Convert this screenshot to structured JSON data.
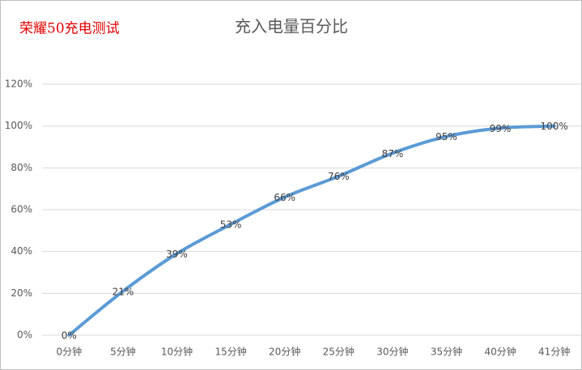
{
  "chart_data": {
    "type": "line",
    "title": "充入电量百分比",
    "annotation": "荣耀50充电测试",
    "categories": [
      "0分钟",
      "5分钟",
      "10分钟",
      "15分钟",
      "20分钟",
      "25分钟",
      "30分钟",
      "35分钟",
      "40分钟",
      "41分钟"
    ],
    "series": [
      {
        "name": "充入电量百分比",
        "color": "#5b9bd5",
        "values": [
          0,
          21,
          39,
          53,
          66,
          76,
          87,
          95,
          99,
          100
        ],
        "value_labels": [
          "0%",
          "21%",
          "39%",
          "53%",
          "66%",
          "76%",
          "87%",
          "95%",
          "99%",
          "100%"
        ]
      }
    ],
    "ylim": [
      0,
      120
    ],
    "yticks": [
      {
        "value": 0,
        "label": "0%"
      },
      {
        "value": 20,
        "label": "20%"
      },
      {
        "value": 40,
        "label": "40%"
      },
      {
        "value": 60,
        "label": "60%"
      },
      {
        "value": 80,
        "label": "80%"
      },
      {
        "value": 100,
        "label": "100%"
      },
      {
        "value": 120,
        "label": "120%"
      }
    ],
    "grid": true,
    "smooth": true
  }
}
